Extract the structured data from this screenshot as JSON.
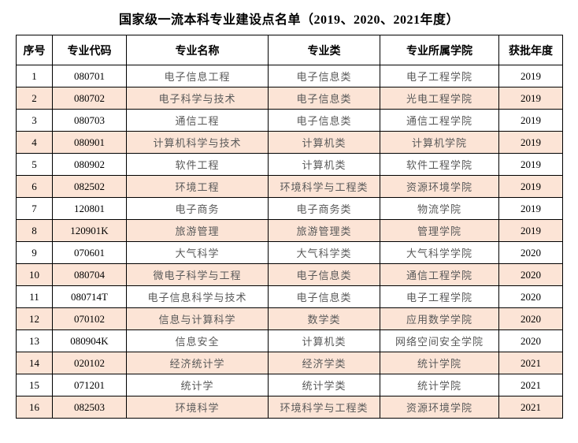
{
  "title": "国家级一流本科专业建设点名单（2019、2020、2021年度）",
  "colors": {
    "row_shade": "#fce4d6",
    "data_text_gray": "#595959",
    "border": "#000000",
    "background": "#ffffff"
  },
  "table": {
    "headers": [
      "序号",
      "专业代码",
      "专业名称",
      "专业类",
      "专业所属学院",
      "获批年度"
    ],
    "rows": [
      [
        "1",
        "080701",
        "电子信息工程",
        "电子信息类",
        "电子工程学院",
        "2019"
      ],
      [
        "2",
        "080702",
        "电子科学与技术",
        "电子信息类",
        "光电工程学院",
        "2019"
      ],
      [
        "3",
        "080703",
        "通信工程",
        "电子信息类",
        "通信工程学院",
        "2019"
      ],
      [
        "4",
        "080901",
        "计算机科学与技术",
        "计算机类",
        "计算机学院",
        "2019"
      ],
      [
        "5",
        "080902",
        "软件工程",
        "计算机类",
        "软件工程学院",
        "2019"
      ],
      [
        "6",
        "082502",
        "环境工程",
        "环境科学与工程类",
        "资源环境学院",
        "2019"
      ],
      [
        "7",
        "120801",
        "电子商务",
        "电子商务类",
        "物流学院",
        "2019"
      ],
      [
        "8",
        "120901K",
        "旅游管理",
        "旅游管理类",
        "管理学院",
        "2019"
      ],
      [
        "9",
        "070601",
        "大气科学",
        "大气科学类",
        "大气科学学院",
        "2020"
      ],
      [
        "10",
        "080704",
        "微电子科学与工程",
        "电子信息类",
        "通信工程学院",
        "2020"
      ],
      [
        "11",
        "080714T",
        "电子信息科学与技术",
        "电子信息类",
        "电子工程学院",
        "2020"
      ],
      [
        "12",
        "070102",
        "信息与计算科学",
        "数学类",
        "应用数学学院",
        "2020"
      ],
      [
        "13",
        "080904K",
        "信息安全",
        "计算机类",
        "网络空间安全学院",
        "2020"
      ],
      [
        "14",
        "020102",
        "经济统计学",
        "经济学类",
        "统计学院",
        "2021"
      ],
      [
        "15",
        "071201",
        "统计学",
        "统计学类",
        "统计学院",
        "2021"
      ],
      [
        "16",
        "082503",
        "环境科学",
        "环境科学与工程类",
        "资源环境学院",
        "2021"
      ]
    ]
  }
}
